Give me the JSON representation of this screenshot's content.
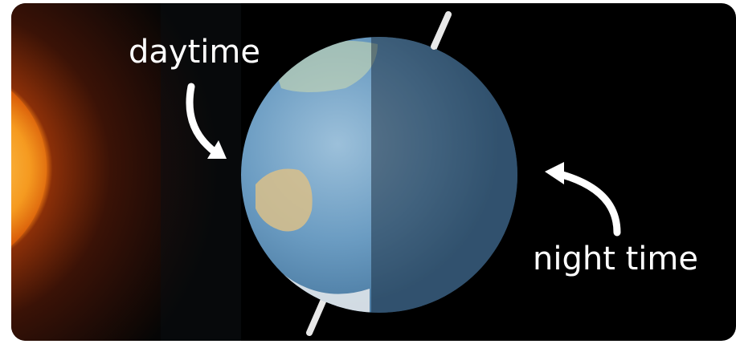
{
  "labels": {
    "day": "daytime",
    "night": "night time"
  }
}
